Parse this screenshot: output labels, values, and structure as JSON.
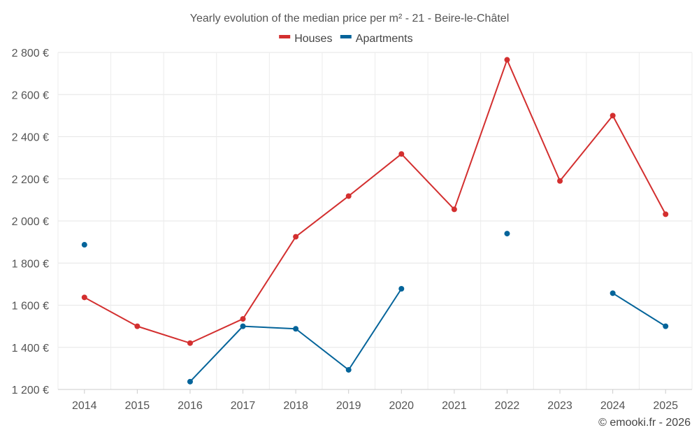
{
  "chart_data": {
    "type": "line",
    "title": "Yearly evolution of the median price per m² - 21 - Beire-le-Châtel",
    "xlabel": "",
    "ylabel": "",
    "categories": [
      "2014",
      "2015",
      "2016",
      "2017",
      "2018",
      "2019",
      "2020",
      "2021",
      "2022",
      "2023",
      "2024",
      "2025"
    ],
    "y_ticks": [
      1200,
      1400,
      1600,
      1800,
      2000,
      2200,
      2400,
      2600,
      2800
    ],
    "y_tick_labels": [
      "1 200 €",
      "1 400 €",
      "1 600 €",
      "1 800 €",
      "2 000 €",
      "2 200 €",
      "2 400 €",
      "2 600 €",
      "2 800 €"
    ],
    "ylim": [
      1200,
      2800
    ],
    "grid": true,
    "legend_position": "top-center",
    "series": [
      {
        "name": "Houses",
        "color": "#d32f2f",
        "values": [
          1637,
          1500,
          1420,
          1535,
          1925,
          2118,
          2318,
          2055,
          2765,
          2190,
          2500,
          2032
        ]
      },
      {
        "name": "Apartments",
        "color": "#04649a",
        "values": [
          1887,
          null,
          1237,
          1500,
          1488,
          1293,
          1678,
          null,
          1940,
          null,
          1657,
          1500
        ]
      }
    ],
    "credit": "© emooki.fr - 2026"
  }
}
